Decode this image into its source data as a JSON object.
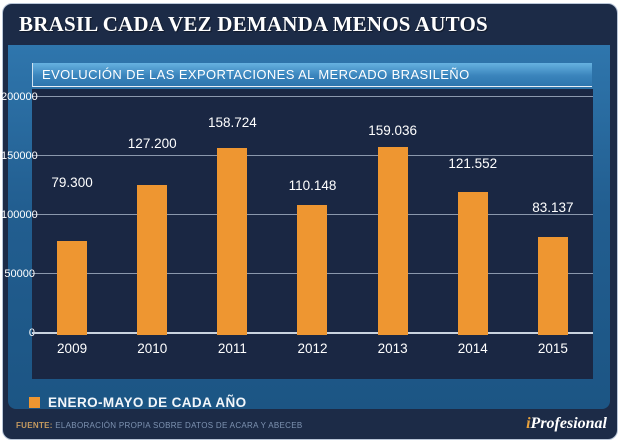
{
  "header": {
    "title": "BRASIL CADA VEZ DEMANDA MENOS AUTOS"
  },
  "subtitle": "EVOLUCIÓN DE LAS EXPORTACIONES AL MERCADO BRASILEÑO",
  "chart_data": {
    "type": "bar",
    "title": "EVOLUCIÓN DE LAS EXPORTACIONES AL MERCADO BRASILEÑO",
    "categories": [
      "2009",
      "2010",
      "2011",
      "2012",
      "2013",
      "2014",
      "2015"
    ],
    "values": [
      79300,
      127200,
      158724,
      110148,
      159036,
      121552,
      83137
    ],
    "value_labels": [
      "79.300",
      "127.200",
      "158.724",
      "110.148",
      "159.036",
      "121.552",
      "83.137"
    ],
    "ylabel": "",
    "xlabel": "",
    "ylim": [
      0,
      200000
    ],
    "yticks": [
      0,
      50000,
      100000,
      150000,
      200000
    ],
    "ytick_labels": [
      "0",
      "50000",
      "100000",
      "150000",
      "200000"
    ],
    "grid": true,
    "legend_position": "bottom",
    "bar_color": "#EE9631",
    "label_gaps": [
      51,
      34,
      18,
      12,
      9,
      21,
      22
    ]
  },
  "legend": {
    "swatch_color": "#EE9631",
    "label": "ENERO-MAYO DE CADA AÑO"
  },
  "footer": {
    "source_label": "FUENTE:",
    "source_text": " ELABORACIÓN PROPIA SOBRE DATOS DE ACARA Y ABECEB",
    "brand_i": "i",
    "brand_rest": "Profesional"
  },
  "colors": {
    "navy": "#1C2B47",
    "plot_navy": "#1A2743",
    "panel_blue_top": "#2F76AD",
    "panel_blue_bottom": "#1C5584",
    "subtitle_blue_top": "#66B2E0",
    "bar_orange": "#EE9631",
    "brand_gold": "#E9A23B"
  }
}
